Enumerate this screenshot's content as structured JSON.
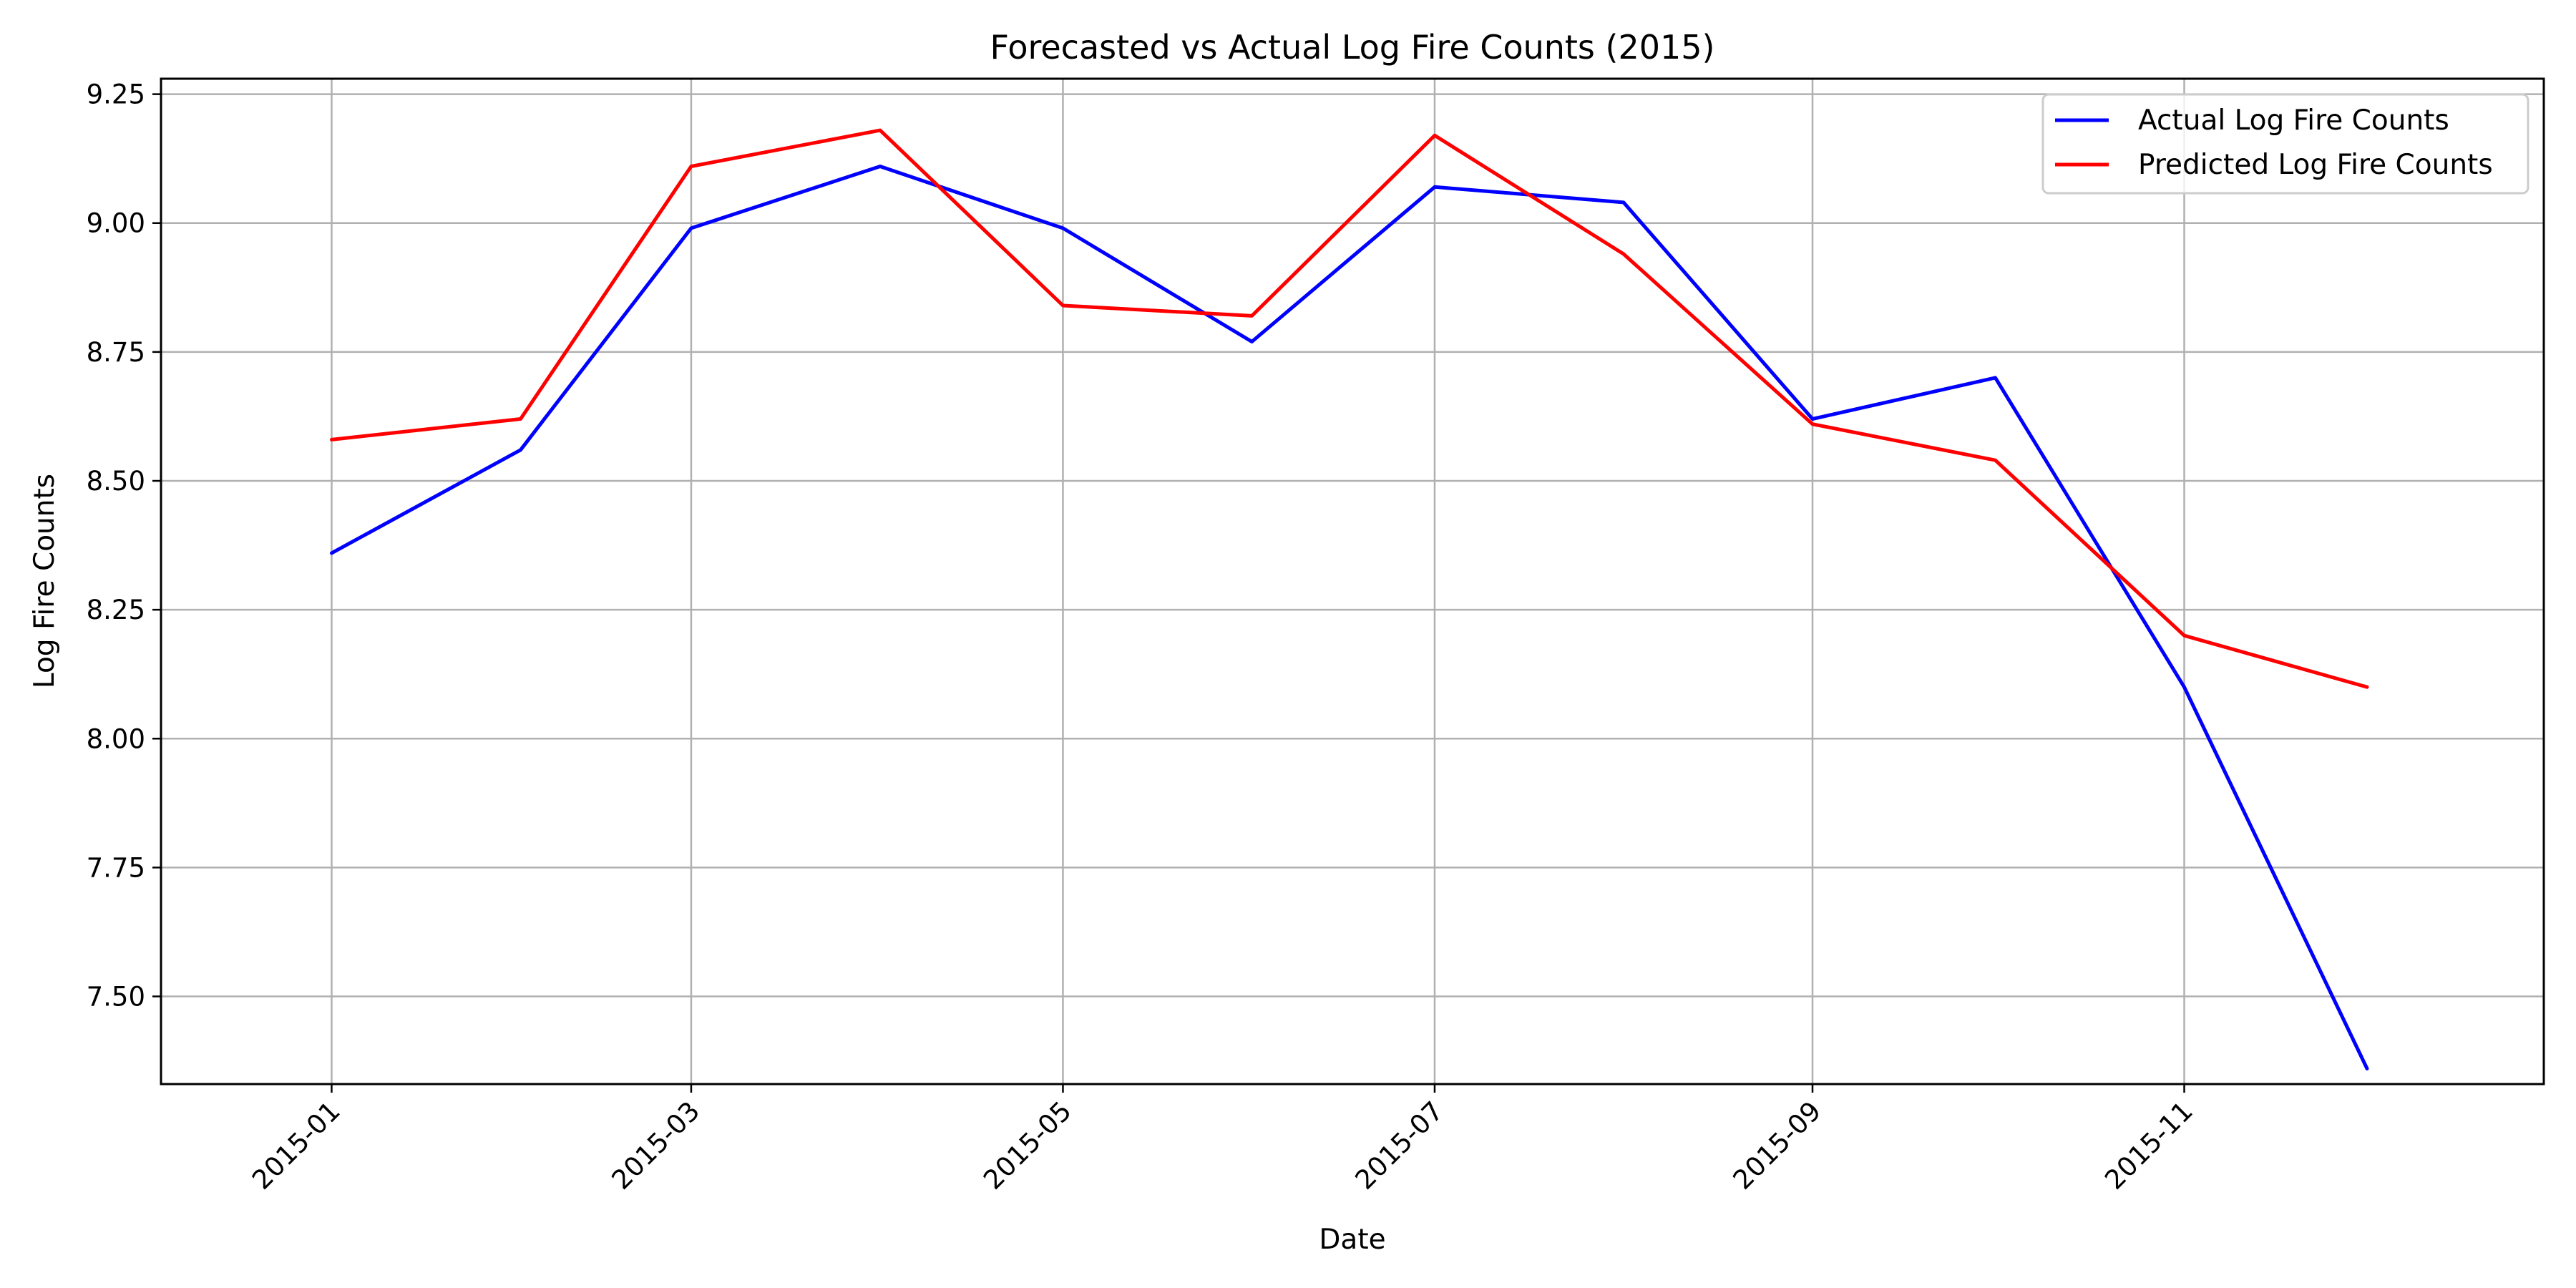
{
  "chart_data": {
    "type": "line",
    "title": "Forecasted vs Actual Log Fire Counts (2015)",
    "xlabel": "Date",
    "ylabel": "Log Fire Counts",
    "x": [
      "2015-01-01",
      "2015-02-01",
      "2015-03-01",
      "2015-04-01",
      "2015-05-01",
      "2015-06-01",
      "2015-07-01",
      "2015-08-01",
      "2015-09-01",
      "2015-10-01",
      "2015-11-01",
      "2015-12-01"
    ],
    "x_ticks": [
      {
        "date": "2015-01-01",
        "label": "2015-01"
      },
      {
        "date": "2015-03-01",
        "label": "2015-03"
      },
      {
        "date": "2015-05-01",
        "label": "2015-05"
      },
      {
        "date": "2015-07-01",
        "label": "2015-07"
      },
      {
        "date": "2015-09-01",
        "label": "2015-09"
      },
      {
        "date": "2015-11-01",
        "label": "2015-11"
      }
    ],
    "xlim": [
      "2014-12-04",
      "2015-12-30"
    ],
    "ylim": [
      7.33,
      9.28
    ],
    "y_ticks": [
      7.5,
      7.75,
      8.0,
      8.25,
      8.5,
      8.75,
      9.0,
      9.25
    ],
    "y_tick_labels": [
      "7.50",
      "7.75",
      "8.00",
      "8.25",
      "8.50",
      "8.75",
      "9.00",
      "9.25"
    ],
    "grid": true,
    "legend_position": "top-right",
    "series": [
      {
        "name": "Actual Log Fire Counts",
        "color": "#0000ff",
        "values": [
          8.36,
          8.56,
          8.99,
          9.11,
          8.99,
          8.77,
          9.07,
          9.04,
          8.62,
          8.7,
          8.1,
          7.36
        ]
      },
      {
        "name": "Predicted Log Fire Counts",
        "color": "#ff0000",
        "values": [
          8.58,
          8.62,
          9.11,
          9.18,
          8.84,
          8.82,
          9.17,
          8.94,
          8.61,
          8.54,
          8.2,
          8.1
        ]
      }
    ]
  }
}
